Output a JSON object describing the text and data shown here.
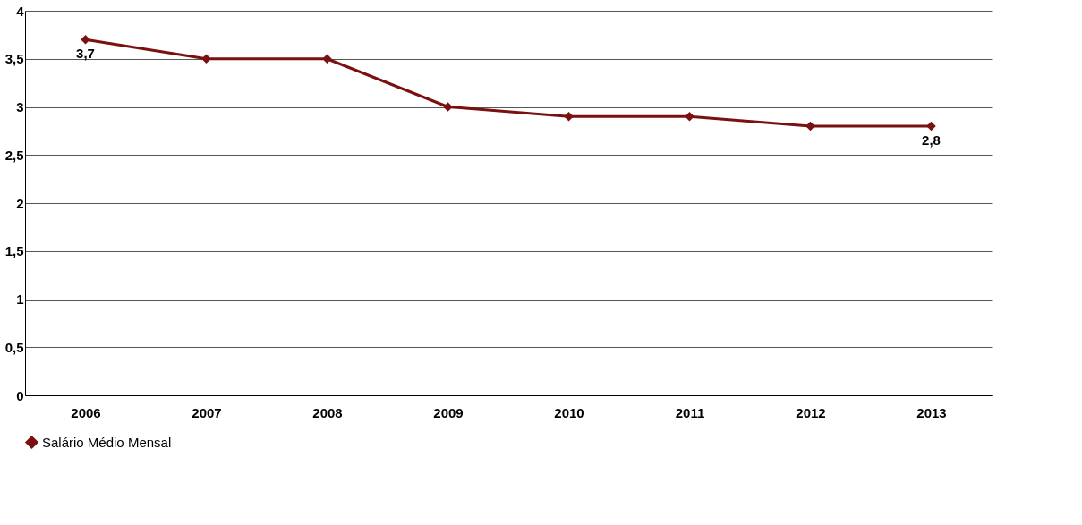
{
  "chart_data": {
    "type": "line",
    "categories": [
      "2006",
      "2007",
      "2008",
      "2009",
      "2010",
      "2011",
      "2012",
      "2013"
    ],
    "series": [
      {
        "name": "Salário Médio Mensal",
        "color": "#7b1010",
        "values": [
          3.7,
          3.5,
          3.5,
          3.0,
          2.9,
          2.9,
          2.8,
          2.8
        ],
        "value_labels": [
          "3,7",
          null,
          null,
          null,
          null,
          null,
          null,
          "2,8"
        ]
      }
    ],
    "ylim": [
      0,
      4
    ],
    "yticks": [
      0,
      {
        "value": 0.5,
        "label": "0,5"
      },
      1,
      {
        "value": 1.5,
        "label": "1,5"
      },
      2,
      {
        "value": 2.5,
        "label": "2,5"
      },
      3,
      {
        "value": 3.5,
        "label": "3,5"
      },
      4
    ],
    "grid": "y",
    "legend": "bottom",
    "marker": "diamond",
    "line_style": "solid"
  }
}
